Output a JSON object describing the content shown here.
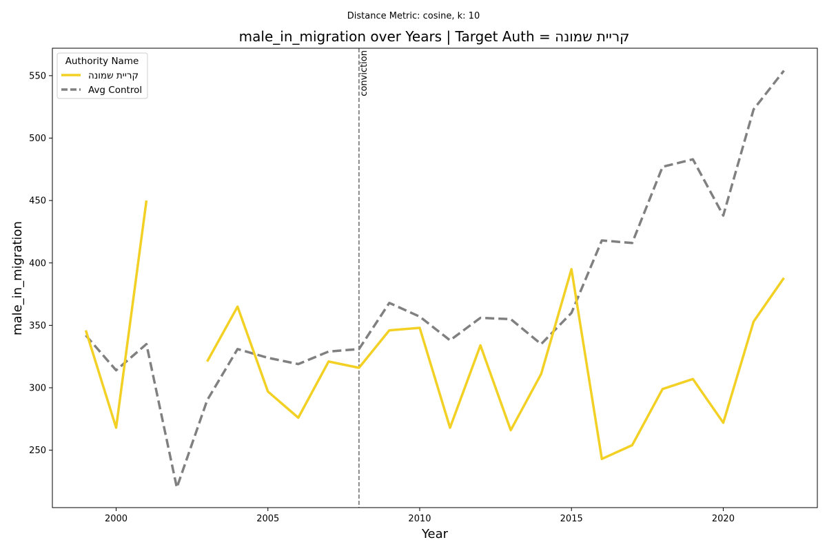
{
  "chart_data": {
    "type": "line",
    "suptitle": "Distance Metric: cosine, k: 10",
    "title": "male_in_migration over Years | Target Auth = קריית שמונה",
    "xlabel": "Year",
    "ylabel": "male_in_migration",
    "xlim": [
      1997.9,
      2023.1
    ],
    "ylim": [
      204,
      572
    ],
    "xticks": [
      2000,
      2005,
      2010,
      2015,
      2020
    ],
    "yticks": [
      250,
      300,
      350,
      400,
      450,
      500,
      550
    ],
    "grid": false,
    "legend": {
      "title": "Authority Name",
      "placement": "top-left"
    },
    "annotations": [
      {
        "x": 2008,
        "text": "conviction",
        "style": "dashed-vertical-line"
      }
    ],
    "series": [
      {
        "name": "קריית שמונה",
        "color": "#f2d024",
        "dash": "solid",
        "points": [
          [
            1999,
            346
          ],
          [
            2000,
            268
          ],
          [
            2001,
            450
          ],
          [
            2002,
            null
          ],
          [
            2003,
            321
          ],
          [
            2004,
            365
          ],
          [
            2005,
            297
          ],
          [
            2006,
            276
          ],
          [
            2007,
            321
          ],
          [
            2008,
            316
          ],
          [
            2009,
            346
          ],
          [
            2010,
            348
          ],
          [
            2011,
            268
          ],
          [
            2012,
            334
          ],
          [
            2013,
            266
          ],
          [
            2014,
            311
          ],
          [
            2015,
            395
          ],
          [
            2016,
            243
          ],
          [
            2017,
            254
          ],
          [
            2018,
            299
          ],
          [
            2019,
            307
          ],
          [
            2020,
            272
          ],
          [
            2021,
            353
          ],
          [
            2022,
            388
          ]
        ]
      },
      {
        "name": "Avg Control",
        "color": "#808080",
        "dash": "dashed",
        "points": [
          [
            1999,
            342
          ],
          [
            2000,
            314
          ],
          [
            2001,
            335
          ],
          [
            2002,
            220
          ],
          [
            2003,
            290
          ],
          [
            2004,
            331
          ],
          [
            2005,
            324
          ],
          [
            2006,
            319
          ],
          [
            2007,
            329
          ],
          [
            2008,
            331
          ],
          [
            2009,
            368
          ],
          [
            2010,
            357
          ],
          [
            2011,
            338
          ],
          [
            2012,
            356
          ],
          [
            2013,
            355
          ],
          [
            2014,
            335
          ],
          [
            2015,
            360
          ],
          [
            2016,
            418
          ],
          [
            2017,
            416
          ],
          [
            2018,
            477
          ],
          [
            2019,
            483
          ],
          [
            2020,
            438
          ],
          [
            2021,
            523
          ],
          [
            2022,
            554
          ]
        ]
      }
    ]
  }
}
